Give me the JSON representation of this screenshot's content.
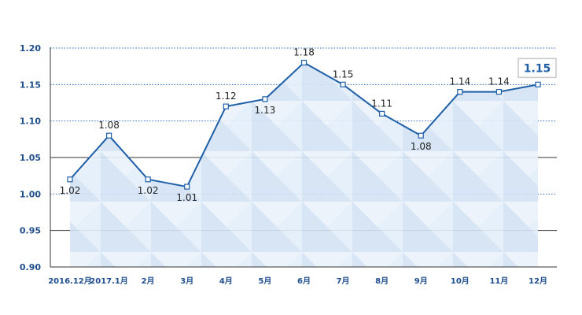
{
  "chart_data": {
    "type": "line",
    "categories": [
      "2016.12月",
      "2017.1月",
      "2月",
      "3月",
      "4月",
      "5月",
      "6月",
      "7月",
      "8月",
      "9月",
      "10月",
      "11月",
      "12月"
    ],
    "values": [
      1.02,
      1.08,
      1.02,
      1.01,
      1.12,
      1.13,
      1.18,
      1.15,
      1.11,
      1.08,
      1.14,
      1.14,
      1.15
    ],
    "value_labels": [
      "1.02",
      "1.08",
      "1.02",
      "1.01",
      "1.12",
      "1.13",
      "1.18",
      "1.15",
      "1.11",
      "1.08",
      "1.14",
      "1.14",
      "1.15"
    ],
    "yticks": [
      "0.90",
      "0.95",
      "1.00",
      "1.05",
      "1.10",
      "1.15",
      "1.20"
    ],
    "ylim": [
      0.9,
      1.2
    ],
    "title": "",
    "xlabel": "",
    "ylabel": "",
    "callout": "1.15",
    "grid": true,
    "colors": {
      "line": "#1f5fa8",
      "axis_text": "#1f4e8c",
      "fill": "#dbe8f6"
    }
  }
}
